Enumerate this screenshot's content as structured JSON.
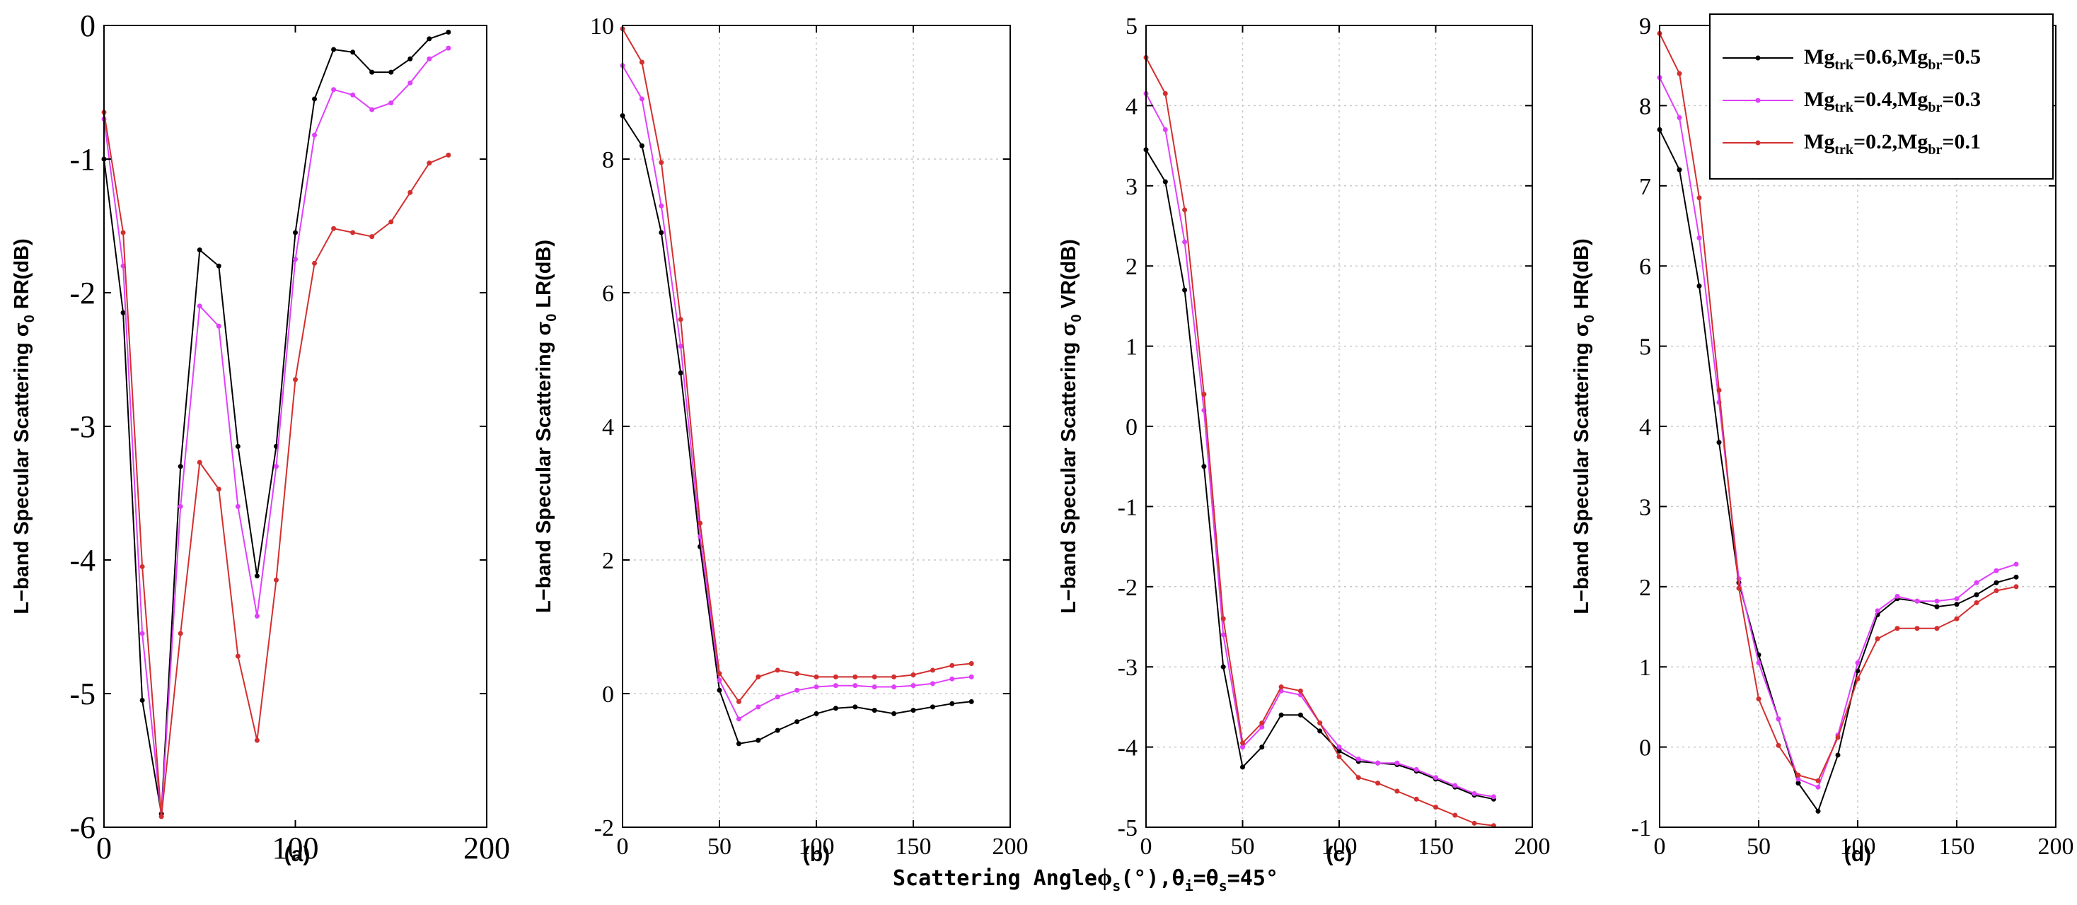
{
  "figure": {
    "xlabel_main": "Scattering Angle",
    "xlabel_phi": "ϕ",
    "xlabel_sub_s1": "s",
    "xlabel_mid": "(°),θ",
    "xlabel_sub_i": "i",
    "xlabel_eq": "=θ",
    "xlabel_sub_s2": "s",
    "xlabel_tail": "=45°"
  },
  "legend": {
    "entries": [
      {
        "p1": "Mg",
        "s1": "trk",
        "p2": "=0.6,Mg",
        "s2": "br",
        "p3": "=0.5",
        "color": "#000000"
      },
      {
        "p1": "Mg",
        "s1": "trk",
        "p2": "=0.4,Mg",
        "s2": "br",
        "p3": "=0.3",
        "color": "#e040fb"
      },
      {
        "p1": "Mg",
        "s1": "trk",
        "p2": "=0.2,Mg",
        "s2": "br",
        "p3": "=0.1",
        "color": "#d32f2f"
      }
    ]
  },
  "chart_data": [
    {
      "type": "line",
      "panel": "(a)",
      "ylabel_pre": "L−band Specular Scattering σ",
      "ylabel_sub": "0",
      "ylabel_post": " RR(dB)",
      "xlim": [
        0,
        200
      ],
      "ylim": [
        -6,
        0
      ],
      "xticks": [
        "0",
        "100",
        "200"
      ],
      "yticks": [
        "0",
        "-1",
        "-2",
        "-3",
        "-4",
        "-5",
        "-6"
      ],
      "grid": false,
      "x": [
        0,
        10,
        20,
        30,
        40,
        50,
        60,
        70,
        80,
        90,
        100,
        110,
        120,
        130,
        140,
        150,
        160,
        170,
        180
      ],
      "series": [
        {
          "name": "Mg_trk=0.6,Mg_br=0.5",
          "color": "#000000",
          "values": [
            -1.0,
            -2.15,
            -5.05,
            -5.9,
            -3.3,
            -1.68,
            -1.8,
            -3.15,
            -4.12,
            -3.15,
            -1.55,
            -0.55,
            -0.18,
            -0.2,
            -0.35,
            -0.35,
            -0.25,
            -0.1,
            -0.05
          ]
        },
        {
          "name": "Mg_trk=0.4,Mg_br=0.3",
          "color": "#e040fb",
          "values": [
            -0.7,
            -1.8,
            -4.55,
            -5.92,
            -3.6,
            -2.1,
            -2.25,
            -3.6,
            -4.42,
            -3.3,
            -1.75,
            -0.82,
            -0.48,
            -0.52,
            -0.63,
            -0.58,
            -0.43,
            -0.25,
            -0.17
          ]
        },
        {
          "name": "Mg_trk=0.2,Mg_br=0.1",
          "color": "#d32f2f",
          "values": [
            -0.65,
            -1.55,
            -4.05,
            -5.92,
            -4.55,
            -3.27,
            -3.47,
            -4.72,
            -5.35,
            -4.15,
            -2.65,
            -1.78,
            -1.52,
            -1.55,
            -1.58,
            -1.47,
            -1.25,
            -1.03,
            -0.97
          ]
        }
      ]
    },
    {
      "type": "line",
      "panel": "(b)",
      "ylabel_pre": "L−band Specular Scattering σ",
      "ylabel_sub": "0",
      "ylabel_post": " LR(dB)",
      "xlim": [
        0,
        200
      ],
      "ylim": [
        -2,
        10
      ],
      "xticks": [
        "0",
        "50",
        "100",
        "150",
        "200"
      ],
      "yticks": [
        "10",
        "8",
        "6",
        "4",
        "2",
        "0",
        "-2"
      ],
      "grid": true,
      "x": [
        0,
        10,
        20,
        30,
        40,
        50,
        60,
        70,
        80,
        90,
        100,
        110,
        120,
        130,
        140,
        150,
        160,
        170,
        180
      ],
      "series": [
        {
          "name": "Mg_trk=0.6,Mg_br=0.5",
          "color": "#000000",
          "values": [
            8.65,
            8.2,
            6.9,
            4.8,
            2.2,
            0.05,
            -0.75,
            -0.7,
            -0.55,
            -0.42,
            -0.3,
            -0.22,
            -0.2,
            -0.25,
            -0.3,
            -0.25,
            -0.2,
            -0.15,
            -0.12
          ]
        },
        {
          "name": "Mg_trk=0.4,Mg_br=0.3",
          "color": "#e040fb",
          "values": [
            9.4,
            8.9,
            7.3,
            5.2,
            2.35,
            0.2,
            -0.38,
            -0.2,
            -0.05,
            0.05,
            0.1,
            0.12,
            0.12,
            0.1,
            0.1,
            0.12,
            0.15,
            0.22,
            0.25
          ]
        },
        {
          "name": "Mg_trk=0.2,Mg_br=0.1",
          "color": "#d32f2f",
          "values": [
            9.95,
            9.45,
            7.95,
            5.6,
            2.55,
            0.3,
            -0.12,
            0.25,
            0.35,
            0.3,
            0.25,
            0.25,
            0.25,
            0.25,
            0.25,
            0.28,
            0.35,
            0.42,
            0.45
          ]
        }
      ]
    },
    {
      "type": "line",
      "panel": "(c)",
      "ylabel_pre": "L−band Specular Scattering σ",
      "ylabel_sub": "0",
      "ylabel_post": " VR(dB)",
      "xlim": [
        0,
        200
      ],
      "ylim": [
        -5,
        5
      ],
      "xticks": [
        "0",
        "50",
        "100",
        "150",
        "200"
      ],
      "yticks": [
        "5",
        "4",
        "3",
        "2",
        "1",
        "0",
        "-1",
        "-2",
        "-3",
        "-4",
        "-5"
      ],
      "grid": true,
      "x": [
        0,
        10,
        20,
        30,
        40,
        50,
        60,
        70,
        80,
        90,
        100,
        110,
        120,
        130,
        140,
        150,
        160,
        170,
        180
      ],
      "series": [
        {
          "name": "Mg_trk=0.6,Mg_br=0.5",
          "color": "#000000",
          "values": [
            3.45,
            3.05,
            1.7,
            -0.5,
            -3.0,
            -4.25,
            -4.0,
            -3.6,
            -3.6,
            -3.8,
            -4.05,
            -4.18,
            -4.2,
            -4.22,
            -4.3,
            -4.4,
            -4.5,
            -4.6,
            -4.65
          ]
        },
        {
          "name": "Mg_trk=0.4,Mg_br=0.3",
          "color": "#e040fb",
          "values": [
            4.15,
            3.7,
            2.3,
            0.2,
            -2.6,
            -4.0,
            -3.75,
            -3.3,
            -3.35,
            -3.7,
            -4.0,
            -4.15,
            -4.2,
            -4.2,
            -4.28,
            -4.38,
            -4.48,
            -4.58,
            -4.62
          ]
        },
        {
          "name": "Mg_trk=0.2,Mg_br=0.1",
          "color": "#d32f2f",
          "values": [
            4.6,
            4.15,
            2.7,
            0.4,
            -2.4,
            -3.95,
            -3.7,
            -3.25,
            -3.3,
            -3.7,
            -4.12,
            -4.38,
            -4.45,
            -4.55,
            -4.65,
            -4.75,
            -4.85,
            -4.95,
            -4.98
          ]
        }
      ]
    },
    {
      "type": "line",
      "panel": "(d)",
      "ylabel_pre": "L−band Specular Scattering σ",
      "ylabel_sub": "0",
      "ylabel_post": " HR(dB)",
      "xlim": [
        0,
        200
      ],
      "ylim": [
        -1,
        9
      ],
      "xticks": [
        "0",
        "50",
        "100",
        "150",
        "200"
      ],
      "yticks": [
        "9",
        "8",
        "7",
        "6",
        "5",
        "4",
        "3",
        "2",
        "1",
        "0",
        "-1"
      ],
      "grid": true,
      "x": [
        0,
        10,
        20,
        30,
        40,
        50,
        60,
        70,
        80,
        90,
        100,
        110,
        120,
        130,
        140,
        150,
        160,
        170,
        180
      ],
      "series": [
        {
          "name": "Mg_trk=0.6,Mg_br=0.5",
          "color": "#000000",
          "values": [
            7.7,
            7.2,
            5.75,
            3.8,
            2.05,
            1.15,
            0.35,
            -0.45,
            -0.8,
            -0.1,
            0.95,
            1.65,
            1.85,
            1.82,
            1.75,
            1.78,
            1.9,
            2.05,
            2.12
          ]
        },
        {
          "name": "Mg_trk=0.4,Mg_br=0.3",
          "color": "#e040fb",
          "values": [
            8.35,
            7.85,
            6.35,
            4.3,
            2.1,
            1.05,
            0.35,
            -0.4,
            -0.5,
            0.15,
            1.05,
            1.7,
            1.88,
            1.82,
            1.82,
            1.85,
            2.05,
            2.2,
            2.28
          ]
        },
        {
          "name": "Mg_trk=0.2,Mg_br=0.1",
          "color": "#d32f2f",
          "values": [
            8.9,
            8.4,
            6.85,
            4.45,
            1.98,
            0.6,
            0.02,
            -0.35,
            -0.42,
            0.12,
            0.85,
            1.35,
            1.48,
            1.48,
            1.48,
            1.6,
            1.8,
            1.95,
            2.0
          ]
        }
      ]
    }
  ]
}
